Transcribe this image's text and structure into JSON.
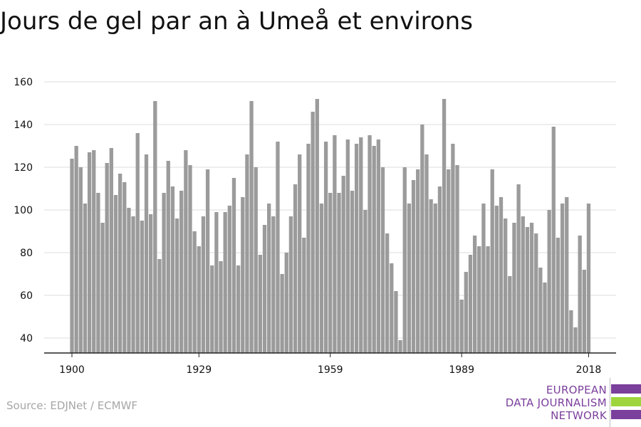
{
  "title": "Jours de gel par an à Umeå et environs",
  "source": "Source: EDJNet / ECMWF",
  "brand": {
    "lines": [
      "EUROPEAN",
      "DATA JOURNALISM",
      "NETWORK"
    ],
    "colors": {
      "purple": "#7b3f9c",
      "green": "#9ed53c"
    }
  },
  "colors": {
    "bar": "#9b9b9b",
    "grid": "#dddddd",
    "axis": "#222222"
  },
  "chart_data": {
    "type": "bar",
    "title": "Jours de gel par an à Umeå et environs",
    "xlabel": "",
    "ylabel": "",
    "ylim": [
      33,
      163
    ],
    "yticks": [
      40,
      60,
      80,
      100,
      120,
      140,
      160
    ],
    "xtick_labels": [
      "1900",
      "1929",
      "1959",
      "1989",
      "2018"
    ],
    "grid": true,
    "categories": [
      1900,
      1901,
      1902,
      1903,
      1904,
      1905,
      1906,
      1907,
      1908,
      1909,
      1910,
      1911,
      1912,
      1913,
      1914,
      1915,
      1916,
      1917,
      1918,
      1919,
      1920,
      1921,
      1922,
      1923,
      1924,
      1925,
      1926,
      1927,
      1928,
      1929,
      1930,
      1931,
      1932,
      1933,
      1934,
      1935,
      1936,
      1937,
      1938,
      1939,
      1940,
      1941,
      1942,
      1943,
      1944,
      1945,
      1946,
      1947,
      1948,
      1949,
      1950,
      1951,
      1952,
      1953,
      1954,
      1955,
      1956,
      1957,
      1958,
      1959,
      1960,
      1961,
      1962,
      1963,
      1964,
      1965,
      1966,
      1967,
      1968,
      1969,
      1970,
      1971,
      1972,
      1973,
      1974,
      1975,
      1976,
      1977,
      1978,
      1979,
      1980,
      1981,
      1982,
      1983,
      1984,
      1985,
      1986,
      1987,
      1988,
      1989,
      1990,
      1991,
      1992,
      1993,
      1994,
      1995,
      1996,
      1997,
      1998,
      1999,
      2000,
      2001,
      2002,
      2003,
      2004,
      2005,
      2006,
      2007,
      2008,
      2009,
      2010,
      2011,
      2012,
      2013,
      2014,
      2015,
      2016,
      2017,
      2018
    ],
    "values": [
      124,
      130,
      120,
      103,
      127,
      128,
      108,
      94,
      122,
      129,
      107,
      117,
      113,
      101,
      97,
      136,
      95,
      126,
      98,
      151,
      77,
      108,
      123,
      111,
      96,
      109,
      128,
      121,
      90,
      83,
      97,
      119,
      74,
      99,
      76,
      99,
      102,
      115,
      74,
      106,
      126,
      151,
      120,
      79,
      93,
      103,
      97,
      132,
      70,
      80,
      97,
      112,
      126,
      87,
      131,
      146,
      152,
      103,
      132,
      108,
      135,
      108,
      116,
      133,
      109,
      131,
      134,
      100,
      135,
      130,
      133,
      120,
      89,
      75,
      62,
      39,
      120,
      103,
      114,
      119,
      140,
      126,
      105,
      103,
      111,
      152,
      119,
      131,
      121,
      58,
      71,
      79,
      88,
      83,
      103,
      83,
      119,
      102,
      106,
      96,
      69,
      94,
      112,
      97,
      92,
      94,
      89,
      73,
      66,
      100,
      139,
      87,
      103,
      106,
      53,
      45,
      88,
      72,
      103
    ]
  }
}
